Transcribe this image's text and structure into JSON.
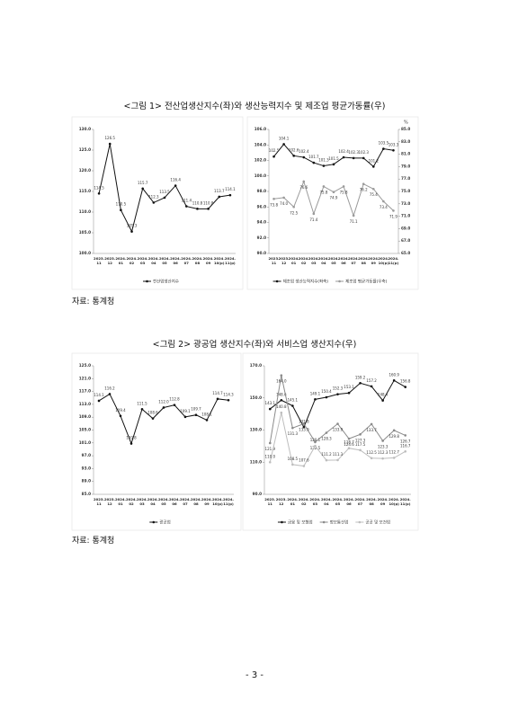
{
  "figures": [
    {
      "caption": "<그림 1> 전산업생산지수(좌)와 생산능력지수 및 제조업 평균가동률(우)",
      "source": "자료: 통계청"
    },
    {
      "caption": "<그림 2> 광공업 생산지수(좌)와 서비스업 생산지수(우)",
      "source": "자료: 통계청"
    }
  ],
  "page_number": "- 3 -",
  "chart_data": [
    {
      "type": "line",
      "categories": [
        "2023. 11",
        "2023. 12",
        "2024. 01",
        "2024. 02",
        "2024. 03",
        "2024. 04",
        "2024. 05",
        "2024. 06",
        "2024. 07",
        "2024. 08",
        "2024. 09",
        "2024. 10(p)",
        "2024. 11(p)"
      ],
      "series": [
        {
          "name": "전산업생산지수",
          "color": "#111111",
          "values": [
            114.5,
            126.5,
            110.5,
            105.3,
            115.7,
            112.3,
            113.5,
            116.4,
            111.4,
            110.8,
            110.8,
            113.7,
            114.1
          ]
        }
      ],
      "ylim": [
        100,
        130
      ],
      "yticks": [
        {
          "value": 100,
          "label": "100.0"
        },
        {
          "value": 105,
          "label": "105.0"
        },
        {
          "value": 110,
          "label": "110.0"
        },
        {
          "value": 115,
          "label": "115.0"
        },
        {
          "value": 120,
          "label": "120.0"
        },
        {
          "value": 125,
          "label": "125.0"
        },
        {
          "value": 130,
          "label": "130.0"
        }
      ]
    },
    {
      "type": "line",
      "categories": [
        "2023. 11",
        "2023. 12",
        "2024. 01",
        "2024. 02",
        "2024. 03",
        "2024. 04",
        "2024. 05",
        "2024. 06",
        "2024. 07",
        "2024. 08",
        "2024. 09",
        "2024. 10(p)",
        "2024. 11(p)"
      ],
      "series": [
        {
          "name": "제조업 생산능력지수(좌축)",
          "color": "#111111",
          "values": [
            102.5,
            104.1,
            102.6,
            102.4,
            101.7,
            101.3,
            101.5,
            102.4,
            102.3,
            102.3,
            101.2,
            103.5,
            103.3
          ]
        },
        {
          "name": "제조업 평균가동률(우축)",
          "color": "#9a9a9a",
          "axis": "y2",
          "values": [
            73.8,
            74.0,
            72.5,
            76.6,
            71.4,
            75.8,
            74.9,
            75.8,
            71.1,
            76.2,
            75.4,
            73.4,
            71.9
          ],
          "value_labels": [
            "73.8",
            "74.0",
            "72.5",
            "76.6",
            "71.4",
            "75.8",
            "74.9",
            "75.8",
            "71.1",
            "76.2",
            "75.4",
            "73.4",
            "71.9"
          ]
        }
      ],
      "ylim": [
        90,
        106
      ],
      "yticks": [
        {
          "value": 90,
          "label": "90.0"
        },
        {
          "value": 92,
          "label": "92.0"
        },
        {
          "value": 94,
          "label": "94.0"
        },
        {
          "value": 96,
          "label": "96.0"
        },
        {
          "value": 98,
          "label": "98.0"
        },
        {
          "value": 100,
          "label": "100.0"
        },
        {
          "value": 102,
          "label": "102.0"
        },
        {
          "value": 104,
          "label": "104.0"
        },
        {
          "value": 106,
          "label": "106.0"
        }
      ],
      "y2label": "%",
      "y2lim": [
        65,
        85
      ],
      "y2ticks": [
        {
          "value": 65,
          "label": "65.0"
        },
        {
          "value": 67,
          "label": "67.0"
        },
        {
          "value": 69,
          "label": "69.0"
        },
        {
          "value": 71,
          "label": "71.0"
        },
        {
          "value": 73,
          "label": "73.0"
        },
        {
          "value": 75,
          "label": "75.0"
        },
        {
          "value": 77,
          "label": "77.0"
        },
        {
          "value": 79,
          "label": "79.0"
        },
        {
          "value": 81,
          "label": "81.0"
        },
        {
          "value": 83,
          "label": "83.0"
        },
        {
          "value": 85,
          "label": "85.0"
        }
      ]
    },
    {
      "type": "line",
      "categories": [
        "2023. 11",
        "2023. 12",
        "2024. 01",
        "2024. 02",
        "2024. 03",
        "2024. 04",
        "2024. 05",
        "2024. 06",
        "2024. 07",
        "2024. 08",
        "2024. 09",
        "2024. 10(p)",
        "2024. 11(p)"
      ],
      "series": [
        {
          "name": "광공업",
          "color": "#111111",
          "values": [
            114.1,
            116.2,
            109.4,
            100.8,
            111.5,
            108.6,
            112.0,
            112.8,
            109.1,
            109.7,
            108.1,
            114.7,
            114.3
          ],
          "value_labels": [
            "114.1",
            "116.2",
            "109.4",
            "100.8",
            "111.5",
            "108.6",
            "112.0",
            "112.8",
            "109.1",
            "109.7",
            "108.1",
            "114.7",
            "114.3"
          ]
        }
      ],
      "ylim": [
        85,
        125
      ],
      "yticks": [
        {
          "value": 85,
          "label": "85.0"
        },
        {
          "value": 89,
          "label": "89.0"
        },
        {
          "value": 93,
          "label": "93.0"
        },
        {
          "value": 97,
          "label": "97.0"
        },
        {
          "value": 101,
          "label": "101.0"
        },
        {
          "value": 105,
          "label": "105.0"
        },
        {
          "value": 109,
          "label": "109.0"
        },
        {
          "value": 113,
          "label": "113.0"
        },
        {
          "value": 117,
          "label": "117.0"
        },
        {
          "value": 121,
          "label": "121.0"
        },
        {
          "value": 125,
          "label": "125.0"
        }
      ]
    },
    {
      "type": "line",
      "categories": [
        "2023. 11",
        "2023. 12",
        "2024. 01",
        "2024. 02",
        "2024. 03",
        "2024. 04",
        "2024. 05",
        "2024. 06",
        "2024. 07",
        "2024. 08",
        "2024. 09",
        "2024. 10(p)",
        "2024. 11(p)"
      ],
      "series": [
        {
          "name": "금융 및 보험업",
          "color": "#111111",
          "values": [
            143.1,
            148.6,
            145.1,
            131.8,
            149.1,
            150.4,
            152.3,
            153.1,
            159.2,
            157.2,
            148.4,
            160.9,
            156.8
          ]
        },
        {
          "name": "정보통신업",
          "color": "#8a8a8a",
          "values": [
            121.9,
            164.0,
            131.3,
            133.9,
            122.5,
            128.3,
            133.9,
            124.6,
            127.3,
            133.7,
            123.3,
            129.8,
            126.7
          ],
          "value_labels": [
            "121.9",
            "164.0",
            "131.3",
            "133.9",
            "122.5",
            "128.3",
            "133.9",
            "124.6",
            "127.3",
            "133.7",
            "123.3",
            "129.8",
            "126.7"
          ]
        },
        {
          "name": "공공 및 보건업",
          "color": "#bdbdbd",
          "values": [
            110.0,
            140.8,
            108.5,
            107.6,
            120.1,
            111.2,
            111.3,
            118.7,
            117.5,
            112.5,
            112.3,
            112.7,
            116.7
          ],
          "value_labels": [
            "110.0",
            "140.8",
            "108.5",
            "107.6",
            "120.1",
            "111.2",
            "111.3",
            "118.7",
            "117.5",
            "112.5",
            "112.3",
            "112.7",
            "116.7"
          ]
        }
      ],
      "ylim": [
        90,
        170
      ],
      "yticks": [
        {
          "value": 90,
          "label": "90.0"
        },
        {
          "value": 110,
          "label": "110.0"
        },
        {
          "value": 130,
          "label": "130.0"
        },
        {
          "value": 150,
          "label": "150.0"
        },
        {
          "value": 170,
          "label": "170.0"
        }
      ]
    }
  ]
}
